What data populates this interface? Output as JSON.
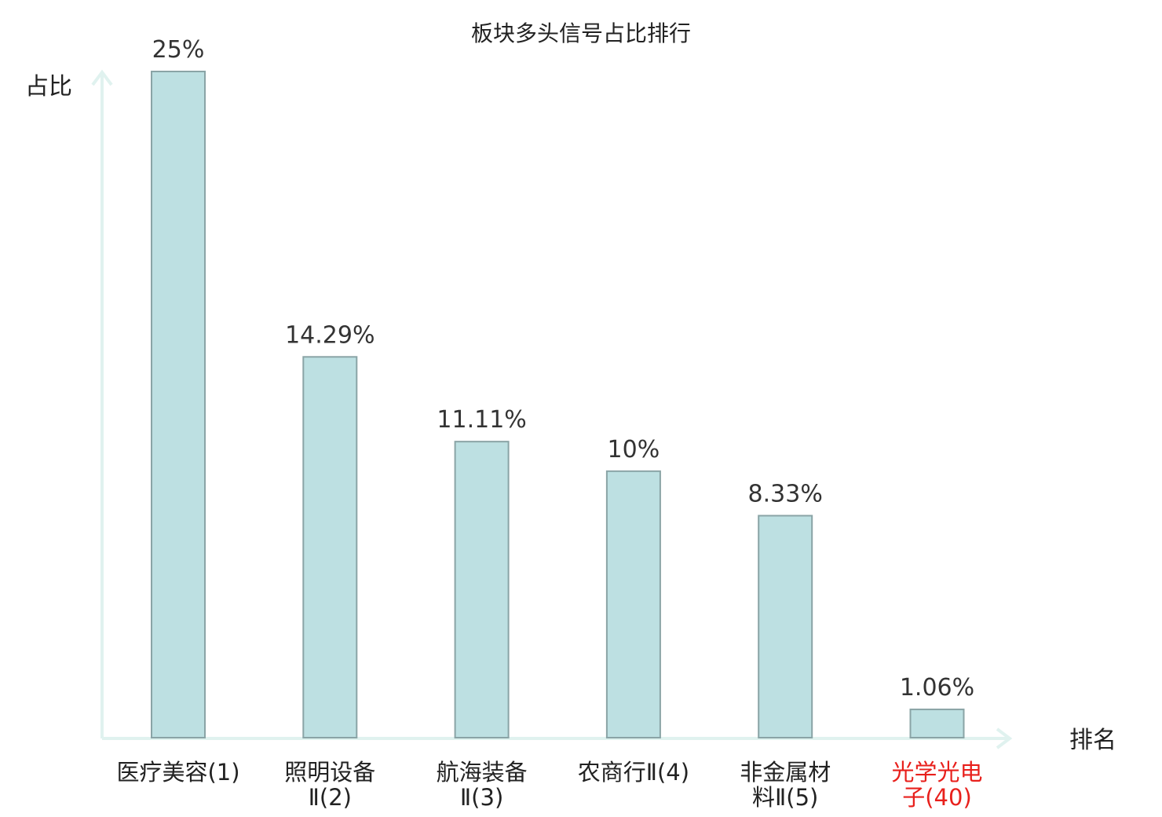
{
  "chart_data": {
    "type": "bar",
    "title": "板块多头信号占比排行",
    "ylabel": "占比",
    "xlabel": "排名",
    "categories": [
      [
        "医疗美容(1)"
      ],
      [
        "照明设备",
        "Ⅱ(2)"
      ],
      [
        "航海装备",
        "Ⅱ(3)"
      ],
      [
        "农商行Ⅱ(4)"
      ],
      [
        "非金属材",
        "料Ⅱ(5)"
      ],
      [
        "光学光电",
        "子(40)"
      ]
    ],
    "values": [
      25,
      14.29,
      11.11,
      10,
      8.33,
      1.06
    ],
    "value_labels": [
      "25%",
      "14.29%",
      "11.11%",
      "10%",
      "8.33%",
      "1.06%"
    ],
    "highlight_index": 5,
    "ylim": [
      0,
      25
    ],
    "grid": false,
    "colors": {
      "bar_fill": "#bde0e2",
      "bar_stroke": "#8aa4a6",
      "axis": "#e0f2ef",
      "highlight_text": "#e8201c",
      "text": "#222222"
    }
  }
}
